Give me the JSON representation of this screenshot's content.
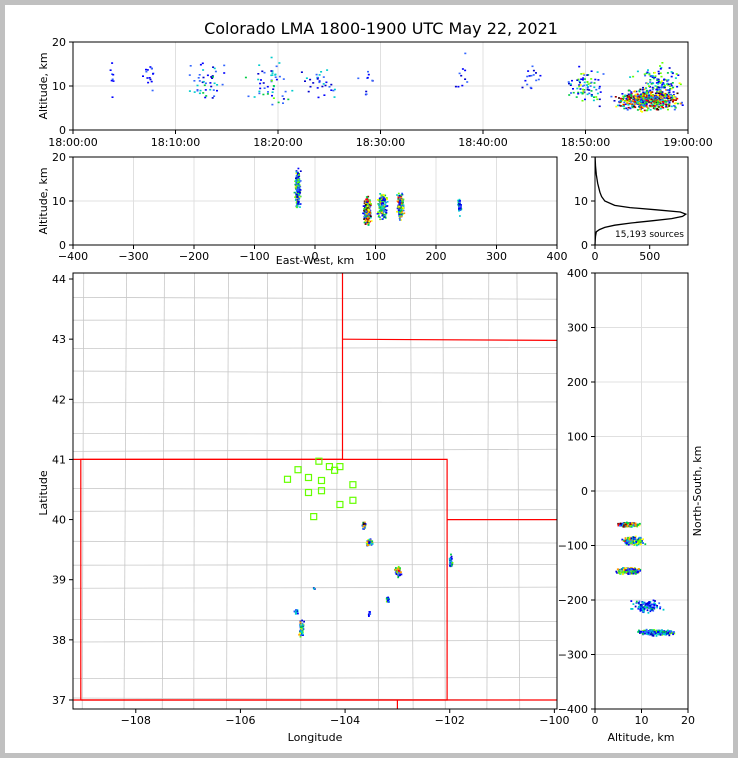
{
  "title": "Colorado LMA 1800-1900 UTC May 22, 2021",
  "colors": {
    "border_state": "#ff0000",
    "border_county": "#c8c8c8",
    "station": "#66ff00",
    "grid": "#e0e0e0",
    "source_scale": [
      "#0000cc",
      "#0000ff",
      "#3366ff",
      "#00cccc",
      "#00cc44",
      "#66ff00",
      "#ffff00",
      "#ff9900",
      "#ff0000",
      "#990000",
      "#330000"
    ]
  },
  "chart_data": [
    {
      "id": "time_altitude",
      "type": "heatmap",
      "title": "",
      "xlabel": "",
      "ylabel": "Altitude, km",
      "x_ticks": [
        "18:00:00",
        "18:10:00",
        "18:20:00",
        "18:30:00",
        "18:40:00",
        "18:50:00",
        "19:00:00"
      ],
      "xlim_minutes": [
        0,
        60
      ],
      "ylim": [
        0,
        20
      ],
      "y_ticks": [
        "0",
        "10",
        "20"
      ],
      "grid": true,
      "density_clusters": [
        {
          "t": 3.7,
          "alt": 12,
          "dt": 0.3,
          "dalt": 6,
          "n": 8,
          "intensity": 0.2
        },
        {
          "t": 7.5,
          "alt": 12,
          "dt": 1.0,
          "dalt": 6,
          "n": 15,
          "intensity": 0.2
        },
        {
          "t": 13,
          "alt": 11,
          "dt": 2.5,
          "dalt": 6,
          "n": 45,
          "intensity": 0.35
        },
        {
          "t": 19,
          "alt": 11,
          "dt": 2.5,
          "dalt": 7,
          "n": 50,
          "intensity": 0.4
        },
        {
          "t": 24,
          "alt": 11,
          "dt": 2.5,
          "dalt": 6,
          "n": 30,
          "intensity": 0.3
        },
        {
          "t": 29,
          "alt": 11,
          "dt": 1.5,
          "dalt": 5,
          "n": 10,
          "intensity": 0.2
        },
        {
          "t": 38,
          "alt": 12,
          "dt": 2.0,
          "dalt": 7,
          "n": 10,
          "intensity": 0.2
        },
        {
          "t": 44.5,
          "alt": 12,
          "dt": 1.5,
          "dalt": 5,
          "n": 16,
          "intensity": 0.2
        },
        {
          "t": 50,
          "alt": 10,
          "dt": 2.5,
          "dalt": 6,
          "n": 80,
          "intensity": 0.5
        },
        {
          "t": 56,
          "alt": 7,
          "dt": 4,
          "dalt": 3,
          "n": 600,
          "intensity": 0.9
        },
        {
          "t": 57,
          "alt": 11,
          "dt": 3,
          "dalt": 5,
          "n": 120,
          "intensity": 0.5
        }
      ]
    },
    {
      "id": "ew_altitude",
      "type": "heatmap",
      "title": "",
      "xlabel": "East-West, km",
      "ylabel": "Altitude, km",
      "xlim": [
        -400,
        400
      ],
      "x_ticks": [
        "−400",
        "−300",
        "−200",
        "−100",
        "0",
        "100",
        "200",
        "300",
        "400"
      ],
      "ylim": [
        0,
        20
      ],
      "y_ticks": [
        "0",
        "10",
        "20"
      ],
      "grid": true,
      "density_clusters": [
        {
          "x": -30,
          "alt": 13,
          "dx": 6,
          "dalt": 6,
          "n": 260,
          "intensity": 0.5
        },
        {
          "x": 85,
          "alt": 8,
          "dx": 8,
          "dalt": 4,
          "n": 320,
          "intensity": 0.95
        },
        {
          "x": 110,
          "alt": 9,
          "dx": 10,
          "dalt": 4,
          "n": 200,
          "intensity": 0.6
        },
        {
          "x": 140,
          "alt": 9,
          "dx": 7,
          "dalt": 4,
          "n": 200,
          "intensity": 0.7
        },
        {
          "x": 238,
          "alt": 9,
          "dx": 4,
          "dalt": 2.5,
          "n": 50,
          "intensity": 0.4
        }
      ]
    },
    {
      "id": "altitude_histogram",
      "type": "line",
      "title": "",
      "xlabel": "",
      "ylabel": "",
      "xlim": [
        0,
        850
      ],
      "x_ticks": [
        "0",
        "500"
      ],
      "ylim": [
        0,
        20
      ],
      "y_ticks": [
        "0",
        "10",
        "20"
      ],
      "annotation": "15,193 sources",
      "series": [
        {
          "alt": [
            0,
            1,
            2,
            3,
            3.5,
            4,
            4.5,
            5,
            5.5,
            6,
            6.5,
            7,
            7.5,
            8,
            8.5,
            9,
            10,
            11,
            12,
            13,
            14,
            15,
            16,
            17,
            18,
            19,
            20
          ],
          "count": [
            0,
            2,
            5,
            12,
            40,
            90,
            180,
            330,
            520,
            700,
            800,
            830,
            780,
            560,
            320,
            180,
            90,
            60,
            45,
            35,
            25,
            18,
            12,
            8,
            5,
            3,
            1
          ]
        }
      ]
    },
    {
      "id": "plan_view",
      "type": "heatmap",
      "title": "",
      "xlabel": "Longitude",
      "ylabel": "Latitude",
      "xlim": [
        -109.2,
        -99.95
      ],
      "ylim": [
        36.85,
        44.1
      ],
      "x_ticks": [
        "−108",
        "−106",
        "−104",
        "−102",
        "−100"
      ],
      "y_ticks": [
        "37",
        "38",
        "39",
        "40",
        "41",
        "42",
        "43",
        "44"
      ],
      "state_borders": [
        [
          [
            -109.05,
            37.0
          ],
          [
            -109.05,
            41.0
          ],
          [
            -102.05,
            41.0
          ],
          [
            -102.05,
            37.0
          ],
          [
            -109.05,
            37.0
          ]
        ],
        [
          [
            -109.2,
            41.0
          ],
          [
            -104.05,
            41.0
          ],
          [
            -104.05,
            44.1
          ]
        ],
        [
          [
            -104.05,
            43.0
          ],
          [
            -99.95,
            42.98
          ]
        ],
        [
          [
            -102.05,
            40.0
          ],
          [
            -99.95,
            40.0
          ]
        ],
        [
          [
            -109.2,
            37.0
          ],
          [
            -99.95,
            37.0
          ]
        ],
        [
          [
            -103.0,
            37.0
          ],
          [
            -103.0,
            36.85
          ]
        ]
      ],
      "stations": [
        [
          -105.1,
          40.67
        ],
        [
          -104.9,
          40.83
        ],
        [
          -104.7,
          40.7
        ],
        [
          -104.5,
          40.97
        ],
        [
          -104.3,
          40.88
        ],
        [
          -104.2,
          40.82
        ],
        [
          -104.1,
          40.88
        ],
        [
          -104.45,
          40.65
        ],
        [
          -104.7,
          40.45
        ],
        [
          -104.45,
          40.48
        ],
        [
          -104.1,
          40.25
        ],
        [
          -103.85,
          40.58
        ],
        [
          -103.85,
          40.32
        ],
        [
          -104.6,
          40.05
        ]
      ],
      "density_clusters": [
        {
          "lon": -103.65,
          "lat": 39.92,
          "dlon": 0.05,
          "dlat": 0.08,
          "n": 50,
          "intensity": 0.9
        },
        {
          "lon": -103.55,
          "lat": 39.63,
          "dlon": 0.08,
          "dlat": 0.07,
          "n": 70,
          "intensity": 0.7
        },
        {
          "lon": -103.0,
          "lat": 39.15,
          "dlon": 0.07,
          "dlat": 0.12,
          "n": 70,
          "intensity": 0.7
        },
        {
          "lon": -102.0,
          "lat": 39.3,
          "dlon": 0.05,
          "dlat": 0.15,
          "n": 35,
          "intensity": 0.4
        },
        {
          "lon": -103.2,
          "lat": 38.67,
          "dlon": 0.05,
          "dlat": 0.08,
          "n": 25,
          "intensity": 0.4
        },
        {
          "lon": -104.85,
          "lat": 38.2,
          "dlon": 0.06,
          "dlat": 0.18,
          "n": 70,
          "intensity": 0.6
        },
        {
          "lon": -104.95,
          "lat": 38.5,
          "dlon": 0.04,
          "dlat": 0.08,
          "n": 20,
          "intensity": 0.3
        },
        {
          "lon": -103.55,
          "lat": 38.45,
          "dlon": 0.03,
          "dlat": 0.06,
          "n": 8,
          "intensity": 0.2
        },
        {
          "lon": -104.6,
          "lat": 38.87,
          "dlon": 0.03,
          "dlat": 0.02,
          "n": 4,
          "intensity": 0.3
        }
      ]
    },
    {
      "id": "altitude_ns",
      "type": "heatmap",
      "title": "",
      "xlabel": "Altitude, km",
      "ylabel": "North-South, km",
      "xlim": [
        0,
        20
      ],
      "x_ticks": [
        "0",
        "10",
        "20"
      ],
      "ylim": [
        -400,
        400
      ],
      "y_ticks": [
        "−400",
        "−300",
        "−200",
        "−100",
        "0",
        "100",
        "200",
        "300",
        "400"
      ],
      "grid": true,
      "density_clusters": [
        {
          "alt": 7,
          "ns": -60,
          "dalt": 3,
          "dns": 5,
          "n": 250,
          "intensity": 0.95
        },
        {
          "alt": 8,
          "ns": -90,
          "dalt": 3,
          "dns": 10,
          "n": 200,
          "intensity": 0.7
        },
        {
          "alt": 7,
          "ns": -145,
          "dalt": 3,
          "dns": 8,
          "n": 250,
          "intensity": 0.7
        },
        {
          "alt": 11,
          "ns": -210,
          "dalt": 4,
          "dns": 15,
          "n": 120,
          "intensity": 0.35
        },
        {
          "alt": 13,
          "ns": -258,
          "dalt": 5,
          "dns": 7,
          "n": 250,
          "intensity": 0.45
        }
      ]
    }
  ]
}
